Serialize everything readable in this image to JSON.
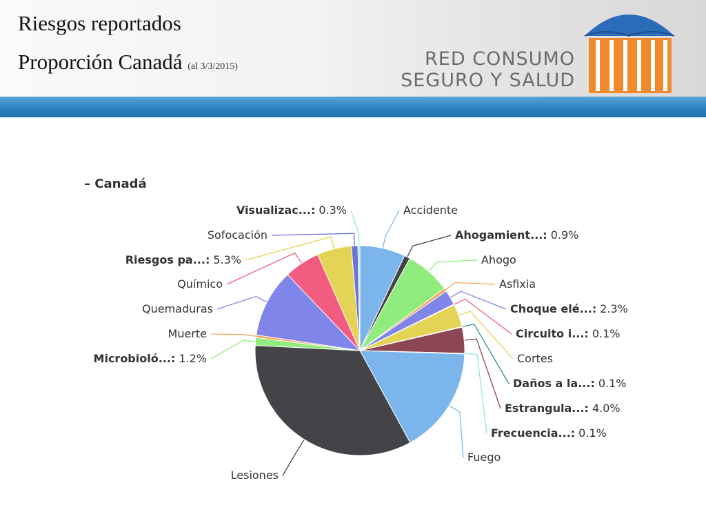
{
  "header": {
    "title": "Riesgos reportados",
    "subtitle": "Proporción Canadá",
    "date": "(al 3/3/2015)"
  },
  "logo": {
    "line1": "RED CONSUMO",
    "line2": "SEGURO Y SALUD"
  },
  "chart_data": {
    "type": "pie",
    "title": "– Canadá",
    "categories": [
      "Accidente",
      "Ahogamient...:",
      "Ahogo",
      "Asfixia",
      "Choque elé...:",
      "Circuito i...:",
      "Cortes",
      "Daños a la...:",
      "Estrangula...:",
      "Frecuencia...:",
      "Fuego",
      "Lesiones",
      "Microbioló...:",
      "Muerte",
      "Quemaduras",
      "Químico",
      "Riesgos pa...:",
      "Sofocación",
      "Visualizac...:"
    ],
    "values": [
      7.0,
      0.9,
      7.0,
      0.5,
      2.3,
      0.1,
      3.5,
      0.1,
      4.0,
      0.1,
      16.5,
      33.7,
      1.2,
      0.4,
      10.5,
      5.5,
      5.3,
      1.0,
      0.3
    ],
    "value_labels": [
      null,
      "0.9%",
      null,
      null,
      "2.3%",
      "0.1%",
      null,
      "0.1%",
      "4.0%",
      "0.1%",
      null,
      null,
      "1.2%",
      null,
      null,
      null,
      "5.3%",
      null,
      "0.3%"
    ],
    "colors": [
      "#7cb5ec",
      "#434348",
      "#90ed7d",
      "#f7a35c",
      "#8085e9",
      "#f15c80",
      "#e4d354",
      "#2b908f",
      "#8d4653",
      "#91e8e1",
      "#7cb5ec",
      "#434348",
      "#90ed7d",
      "#f7a35c",
      "#8085e9",
      "#f15c80",
      "#e4d354",
      "#6f73d9",
      "#91e8e1"
    ]
  }
}
